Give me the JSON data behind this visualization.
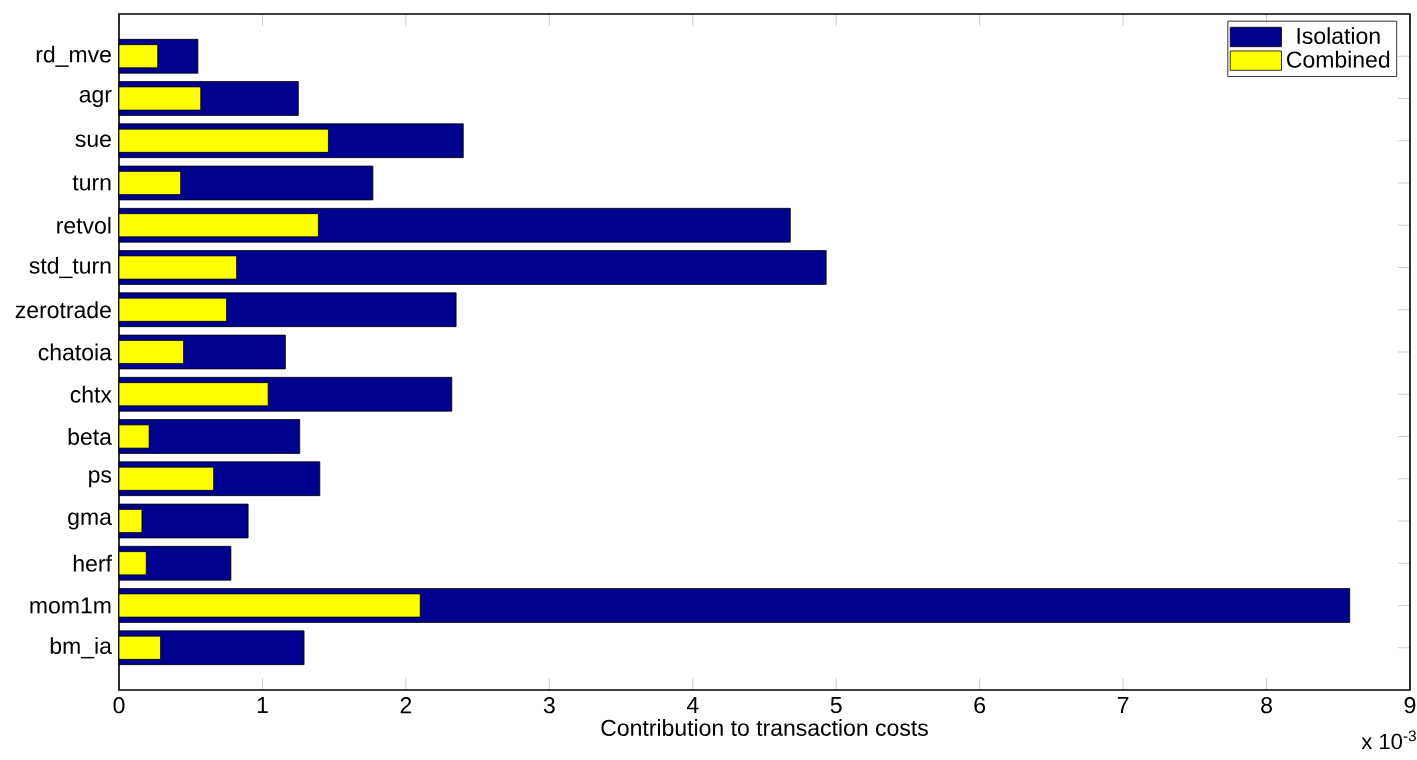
{
  "chart_data": {
    "type": "bar",
    "orientation": "horizontal",
    "xlabel": "Contribution to transaction costs",
    "categories": [
      "rd_mve",
      "agr",
      "sue",
      "turn",
      "retvol",
      "std_turn",
      "zerotrade",
      "chatoia",
      "chtx",
      "beta",
      "ps",
      "gma",
      "herf",
      "mom1m",
      "bm_ia"
    ],
    "series": [
      {
        "name": "Isolation",
        "color": "#00008f",
        "values": [
          0.55,
          1.25,
          2.4,
          1.77,
          4.68,
          4.93,
          2.35,
          1.16,
          2.32,
          1.26,
          1.4,
          0.9,
          0.78,
          8.58,
          1.29
        ]
      },
      {
        "name": "Combined",
        "color": "#ffff00",
        "values": [
          0.27,
          0.57,
          1.46,
          0.43,
          1.39,
          0.82,
          0.75,
          0.45,
          1.04,
          0.21,
          0.66,
          0.16,
          0.19,
          2.1,
          0.29
        ]
      }
    ],
    "xlim": [
      0,
      9
    ],
    "xticks": [
      0,
      1,
      2,
      3,
      4,
      5,
      6,
      7,
      8,
      9
    ],
    "legend": "top right",
    "annotations": [
      "x 10$^{-3}$"
    ]
  }
}
